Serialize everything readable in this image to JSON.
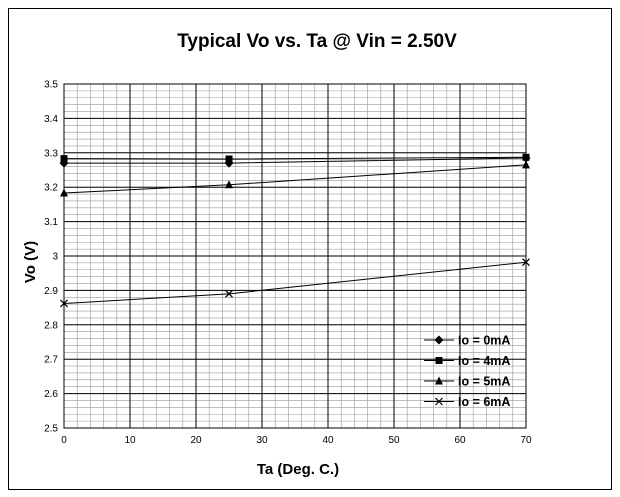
{
  "chart_data": {
    "type": "line",
    "title": "Typical Vo vs. Ta @ Vin = 2.50V",
    "xlabel": "Ta (Deg. C.)",
    "ylabel": "Vo (V)",
    "xlim": [
      0,
      70
    ],
    "ylim": [
      2.5,
      3.5
    ],
    "x_ticks": [
      "0",
      "10",
      "20",
      "30",
      "40",
      "50",
      "60",
      "70"
    ],
    "y_ticks": [
      "2.5",
      "2.6",
      "2.7",
      "2.8",
      "2.9",
      "3",
      "3.1",
      "3.2",
      "3.3",
      "3.4",
      "3.5"
    ],
    "grid": "major and minor",
    "legend_position": "bottom-right",
    "x": [
      0,
      25,
      70
    ],
    "series": [
      {
        "name": "Io = 0mA",
        "marker": "diamond",
        "values": [
          3.27,
          3.27,
          3.285
        ]
      },
      {
        "name": "Io = 4mA",
        "marker": "square",
        "values": [
          3.283,
          3.282,
          3.287
        ]
      },
      {
        "name": "Io = 5mA",
        "marker": "triangle",
        "values": [
          3.183,
          3.207,
          3.265
        ]
      },
      {
        "name": "Io = 6mA",
        "marker": "x",
        "values": [
          2.862,
          2.89,
          2.982
        ]
      }
    ]
  }
}
